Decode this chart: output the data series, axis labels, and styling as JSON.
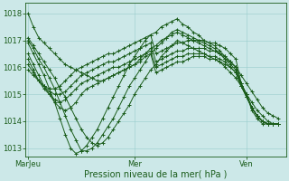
{
  "bg_color": "#cce8e8",
  "line_color": "#1a5c1a",
  "grid_color": "#99cccc",
  "ylim": [
    1012.7,
    1018.4
  ],
  "xlim": [
    -1,
    97
  ],
  "yticks": [
    1013,
    1014,
    1015,
    1016,
    1017,
    1018
  ],
  "xtick_positions": [
    0,
    40,
    82
  ],
  "xtick_labels": [
    "MarJeu",
    "Mer",
    "Ven"
  ],
  "xlabel": "Pression niveau de la mer( hPa )",
  "xlabel_fontsize": 7,
  "tick_fontsize": 6,
  "marker": "+",
  "markersize": 3,
  "markeredgewidth": 0.7,
  "linewidth": 0.7,
  "series": [
    [
      0,
      1018.0,
      2,
      1017.5,
      4,
      1017.1,
      6,
      1016.9,
      8,
      1016.7,
      10,
      1016.5,
      12,
      1016.3,
      14,
      1016.1,
      16,
      1016.0,
      18,
      1015.9,
      20,
      1015.8,
      22,
      1015.7,
      24,
      1015.6,
      26,
      1015.5,
      28,
      1015.5,
      30,
      1015.6,
      32,
      1015.7,
      34,
      1015.8,
      36,
      1015.9,
      38,
      1016.0,
      40,
      1016.1,
      42,
      1016.3,
      44,
      1016.5,
      46,
      1016.7,
      48,
      1016.8,
      50,
      1017.0,
      52,
      1017.1,
      54,
      1017.2,
      56,
      1017.3,
      58,
      1017.2,
      60,
      1017.1,
      62,
      1017.0,
      64,
      1016.9,
      66,
      1016.8,
      68,
      1016.7,
      70,
      1016.6,
      72,
      1016.5,
      74,
      1016.3,
      76,
      1016.2,
      78,
      1016.0,
      80,
      1015.7,
      82,
      1015.4,
      84,
      1015.1,
      86,
      1014.8,
      88,
      1014.5,
      90,
      1014.3,
      92,
      1014.2,
      94,
      1014.1
    ],
    [
      0,
      1017.1,
      2,
      1016.8,
      4,
      1016.5,
      6,
      1016.2,
      8,
      1015.9,
      10,
      1015.6,
      12,
      1015.2,
      14,
      1014.9,
      16,
      1014.5,
      18,
      1014.1,
      20,
      1013.7,
      22,
      1013.4,
      24,
      1013.2,
      26,
      1013.1,
      28,
      1013.2,
      30,
      1013.4,
      32,
      1013.7,
      34,
      1014.0,
      36,
      1014.3,
      38,
      1014.6,
      40,
      1015.0,
      42,
      1015.3,
      44,
      1015.6,
      46,
      1015.9,
      48,
      1016.1,
      50,
      1016.4,
      52,
      1016.6,
      54,
      1016.8,
      56,
      1017.0,
      58,
      1016.9,
      60,
      1016.8,
      62,
      1016.7,
      64,
      1016.6,
      66,
      1016.5,
      68,
      1016.4,
      70,
      1016.3,
      72,
      1016.2,
      74,
      1016.0,
      76,
      1015.8,
      78,
      1015.6,
      80,
      1015.3,
      82,
      1015.0,
      84,
      1014.7,
      86,
      1014.4,
      88,
      1014.2,
      90,
      1014.0,
      92,
      1013.9,
      94,
      1013.9
    ],
    [
      0,
      1017.0,
      2,
      1016.7,
      4,
      1016.3,
      6,
      1016.0,
      8,
      1015.6,
      10,
      1015.2,
      12,
      1014.7,
      14,
      1014.2,
      16,
      1013.7,
      18,
      1013.3,
      20,
      1012.9,
      22,
      1012.9,
      24,
      1013.0,
      26,
      1013.2,
      28,
      1013.5,
      30,
      1013.8,
      32,
      1014.1,
      34,
      1014.5,
      36,
      1014.9,
      38,
      1015.3,
      40,
      1015.6,
      42,
      1015.9,
      44,
      1016.2,
      46,
      1016.5,
      48,
      1016.7,
      50,
      1016.9,
      52,
      1017.1,
      54,
      1017.3,
      56,
      1017.4,
      58,
      1017.3,
      60,
      1017.2,
      62,
      1017.1,
      64,
      1017.0,
      66,
      1016.9,
      68,
      1016.8,
      70,
      1016.7,
      72,
      1016.5,
      74,
      1016.3,
      76,
      1016.1,
      78,
      1015.9,
      80,
      1015.4,
      82,
      1015.0,
      84,
      1014.5,
      86,
      1014.2,
      88,
      1014.0,
      90,
      1013.9,
      92,
      1013.9,
      94,
      1013.9
    ],
    [
      0,
      1016.9,
      2,
      1016.5,
      4,
      1016.1,
      6,
      1015.7,
      8,
      1015.2,
      10,
      1014.7,
      12,
      1014.1,
      14,
      1013.5,
      16,
      1013.0,
      18,
      1012.8,
      20,
      1012.9,
      22,
      1013.1,
      24,
      1013.4,
      26,
      1013.7,
      28,
      1014.1,
      30,
      1014.5,
      32,
      1014.9,
      34,
      1015.3,
      36,
      1015.7,
      38,
      1016.1,
      40,
      1016.4,
      42,
      1016.7,
      44,
      1017.0,
      46,
      1017.2,
      48,
      1017.3,
      50,
      1017.5,
      52,
      1017.6,
      54,
      1017.7,
      56,
      1017.8,
      58,
      1017.6,
      60,
      1017.5,
      62,
      1017.3,
      64,
      1017.2,
      66,
      1017.0,
      68,
      1016.9,
      70,
      1016.8,
      72,
      1016.6,
      74,
      1016.4,
      76,
      1016.2,
      78,
      1016.0,
      80,
      1015.4,
      82,
      1014.9,
      84,
      1014.5,
      86,
      1014.2,
      88,
      1014.0,
      90,
      1013.9,
      92,
      1013.9,
      94,
      1013.9
    ],
    [
      0,
      1016.5,
      2,
      1016.1,
      4,
      1015.7,
      6,
      1015.3,
      8,
      1015.0,
      10,
      1014.7,
      12,
      1014.5,
      14,
      1014.4,
      16,
      1014.5,
      18,
      1014.7,
      20,
      1015.0,
      22,
      1015.2,
      24,
      1015.3,
      26,
      1015.4,
      28,
      1015.5,
      30,
      1015.6,
      32,
      1015.7,
      34,
      1015.8,
      36,
      1015.9,
      38,
      1016.0,
      40,
      1016.1,
      42,
      1016.2,
      44,
      1016.4,
      46,
      1016.5,
      48,
      1015.8,
      50,
      1015.9,
      52,
      1016.0,
      54,
      1016.1,
      56,
      1016.2,
      58,
      1016.2,
      60,
      1016.3,
      62,
      1016.4,
      64,
      1016.4,
      66,
      1016.4,
      68,
      1016.3,
      70,
      1016.3,
      72,
      1016.2,
      74,
      1016.1,
      76,
      1016.0,
      78,
      1015.8,
      80,
      1015.3,
      82,
      1014.9,
      84,
      1014.5,
      86,
      1014.2,
      88,
      1014.0,
      90,
      1013.9,
      92,
      1013.9,
      94,
      1013.9
    ],
    [
      0,
      1016.3,
      2,
      1015.9,
      4,
      1015.5,
      6,
      1015.2,
      8,
      1015.0,
      10,
      1014.8,
      12,
      1014.7,
      14,
      1014.8,
      16,
      1015.0,
      18,
      1015.2,
      20,
      1015.4,
      22,
      1015.5,
      24,
      1015.6,
      26,
      1015.7,
      28,
      1015.8,
      30,
      1015.9,
      32,
      1016.0,
      34,
      1016.0,
      36,
      1016.1,
      38,
      1016.2,
      40,
      1016.3,
      42,
      1016.4,
      44,
      1016.5,
      46,
      1016.6,
      48,
      1016.0,
      50,
      1016.1,
      52,
      1016.2,
      54,
      1016.3,
      56,
      1016.4,
      58,
      1016.4,
      60,
      1016.5,
      62,
      1016.5,
      64,
      1016.5,
      66,
      1016.5,
      68,
      1016.4,
      70,
      1016.4,
      72,
      1016.3,
      74,
      1016.2,
      76,
      1016.0,
      78,
      1015.8,
      80,
      1015.3,
      82,
      1014.9,
      84,
      1014.5,
      86,
      1014.2,
      88,
      1014.0,
      90,
      1013.9,
      92,
      1013.9,
      94,
      1013.9
    ],
    [
      0,
      1016.1,
      2,
      1015.8,
      4,
      1015.5,
      6,
      1015.3,
      8,
      1015.1,
      10,
      1015.0,
      12,
      1015.0,
      14,
      1015.1,
      16,
      1015.3,
      18,
      1015.5,
      20,
      1015.7,
      22,
      1015.8,
      24,
      1015.9,
      26,
      1016.0,
      28,
      1016.1,
      30,
      1016.2,
      32,
      1016.2,
      34,
      1016.3,
      36,
      1016.4,
      38,
      1016.5,
      40,
      1016.6,
      42,
      1016.7,
      44,
      1016.8,
      46,
      1016.9,
      48,
      1016.2,
      50,
      1016.3,
      52,
      1016.4,
      54,
      1016.5,
      56,
      1016.6,
      58,
      1016.6,
      60,
      1016.7,
      62,
      1016.7,
      64,
      1016.7,
      66,
      1016.7,
      68,
      1016.6,
      70,
      1016.6,
      72,
      1016.5,
      74,
      1016.4,
      76,
      1016.2,
      78,
      1016.0,
      80,
      1015.3,
      82,
      1015.0,
      84,
      1014.5,
      86,
      1014.2,
      88,
      1014.0,
      90,
      1013.9,
      92,
      1013.9,
      94,
      1013.9
    ],
    [
      0,
      1015.9,
      2,
      1015.7,
      4,
      1015.5,
      6,
      1015.3,
      8,
      1015.2,
      10,
      1015.2,
      12,
      1015.3,
      14,
      1015.5,
      16,
      1015.7,
      18,
      1015.9,
      20,
      1016.0,
      22,
      1016.1,
      24,
      1016.2,
      26,
      1016.3,
      28,
      1016.4,
      30,
      1016.5,
      32,
      1016.5,
      34,
      1016.6,
      36,
      1016.7,
      38,
      1016.8,
      40,
      1016.9,
      42,
      1017.0,
      44,
      1017.1,
      46,
      1017.2,
      48,
      1016.5,
      50,
      1016.6,
      52,
      1016.7,
      54,
      1016.8,
      56,
      1016.9,
      58,
      1016.9,
      60,
      1017.0,
      62,
      1017.0,
      64,
      1017.0,
      66,
      1017.0,
      68,
      1016.9,
      70,
      1016.9,
      72,
      1016.8,
      74,
      1016.7,
      76,
      1016.5,
      78,
      1016.3,
      80,
      1015.4,
      82,
      1015.0,
      84,
      1014.4,
      86,
      1014.1,
      88,
      1013.9,
      90,
      1013.9,
      92,
      1013.9,
      94,
      1013.9
    ]
  ]
}
